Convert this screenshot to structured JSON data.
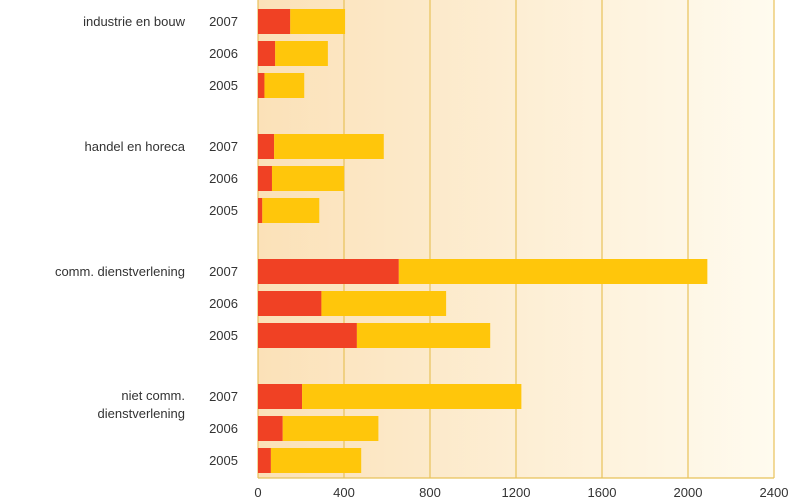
{
  "chart_data": {
    "type": "bar",
    "orientation": "horizontal",
    "stacked": true,
    "title": "",
    "xlabel": "",
    "ylabel": "",
    "xlim": [
      0,
      2400
    ],
    "xticks": [
      "0",
      "400",
      "800",
      "1200",
      "1600",
      "2000",
      "2400"
    ],
    "grid": true,
    "legend": "none",
    "groups": [
      {
        "label": "industrie en bouw",
        "bars": [
          {
            "year": "2007",
            "red": 150,
            "yellow": 255
          },
          {
            "year": "2006",
            "red": 80,
            "yellow": 245
          },
          {
            "year": "2005",
            "red": 30,
            "yellow": 185
          }
        ]
      },
      {
        "label": "handel en horeca",
        "bars": [
          {
            "year": "2007",
            "red": 75,
            "yellow": 510
          },
          {
            "year": "2006",
            "red": 65,
            "yellow": 335
          },
          {
            "year": "2005",
            "red": 20,
            "yellow": 265
          }
        ]
      },
      {
        "label": "comm. dienstverlening",
        "bars": [
          {
            "year": "2007",
            "red": 655,
            "yellow": 1435
          },
          {
            "year": "2006",
            "red": 295,
            "yellow": 580
          },
          {
            "year": "2005",
            "red": 460,
            "yellow": 620
          }
        ]
      },
      {
        "label": "niet comm. dienstverlening",
        "bars": [
          {
            "year": "2007",
            "red": 205,
            "yellow": 1020
          },
          {
            "year": "2006",
            "red": 115,
            "yellow": 445
          },
          {
            "year": "2005",
            "red": 60,
            "yellow": 420
          }
        ]
      }
    ],
    "colors": {
      "red": "#f04124",
      "yellow": "#ffc60b",
      "grid": "#e8c25a",
      "bg_left": "#fbe1b8",
      "bg_right": "#fffbef"
    }
  }
}
